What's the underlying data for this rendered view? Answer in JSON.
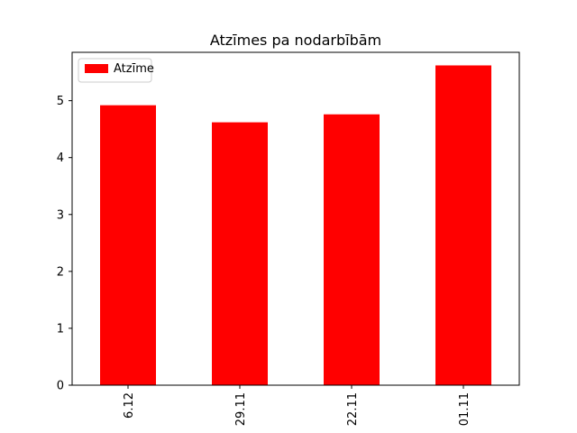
{
  "chart_data": {
    "type": "bar",
    "title": "Atzīmes pa nodarbībām",
    "categories": [
      "6.12",
      "29.11",
      "22.11",
      "01.11"
    ],
    "series": [
      {
        "name": "Atzīme",
        "values": [
          4.92,
          4.62,
          4.76,
          5.62
        ],
        "color": "#ff0000"
      }
    ],
    "ylim": [
      0,
      5.85
    ],
    "yticks": [
      "0",
      "1",
      "2",
      "3",
      "4",
      "5"
    ],
    "grid": false,
    "legend": "top-left",
    "xtick_rotation": "vertical"
  }
}
